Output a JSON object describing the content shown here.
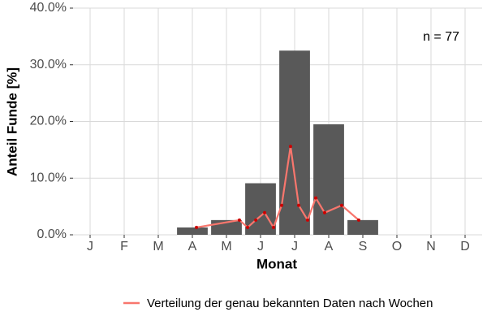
{
  "chart_data": {
    "type": "bar",
    "annotation": "n = 77",
    "x_label": "Monat",
    "y_label": "Anteil Funde [%]",
    "categories": [
      "J",
      "F",
      "M",
      "A",
      "M",
      "J",
      "J",
      "A",
      "S",
      "O",
      "N",
      "D"
    ],
    "values": [
      0,
      0,
      0,
      1.3,
      2.6,
      9.1,
      32.5,
      19.5,
      2.6,
      0,
      0,
      0
    ],
    "color": "#595959",
    "xlim": [
      0.5,
      12.5
    ],
    "ylim": [
      0,
      40
    ],
    "yticks": [
      {
        "value": 0,
        "label": "0.0%"
      },
      {
        "value": 10,
        "label": "10.0%"
      },
      {
        "value": 20,
        "label": "20.0%"
      },
      {
        "value": 30,
        "label": "30.0%"
      },
      {
        "value": 40,
        "label": "40.0%"
      }
    ],
    "grid": true,
    "line": {
      "name": "Verteilung der genau bekannten Daten nach Wochen",
      "color": "#f8766d",
      "point_color": "#cc0000",
      "x": [
        4.12,
        5.38,
        5.62,
        5.86,
        6.12,
        6.38,
        6.62,
        6.88,
        7.12,
        7.38,
        7.62,
        7.88,
        8.38,
        8.88
      ],
      "values": [
        1.3,
        2.6,
        1.3,
        2.6,
        3.9,
        1.3,
        5.2,
        15.6,
        5.2,
        2.6,
        6.5,
        3.9,
        5.2,
        2.6
      ]
    },
    "legend": "bottom"
  }
}
